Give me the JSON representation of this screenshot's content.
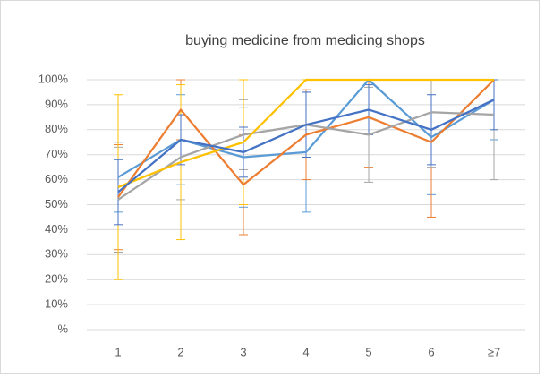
{
  "chart_data": {
    "type": "line",
    "title": "buying medicine from medicing shops",
    "categories": [
      "1",
      "2",
      "3",
      "4",
      "5",
      "6",
      "≥7"
    ],
    "ylim": [
      0,
      100
    ],
    "yticks": [
      {
        "value": 0,
        "label": "%"
      },
      {
        "value": 10,
        "label": "10%"
      },
      {
        "value": 20,
        "label": "20%"
      },
      {
        "value": 30,
        "label": "30%"
      },
      {
        "value": 40,
        "label": "40%"
      },
      {
        "value": 50,
        "label": "50%"
      },
      {
        "value": 60,
        "label": "60%"
      },
      {
        "value": 70,
        "label": "70%"
      },
      {
        "value": 80,
        "label": "80%"
      },
      {
        "value": 90,
        "label": "90%"
      },
      {
        "value": 100,
        "label": "100%"
      }
    ],
    "grid": true,
    "series": [
      {
        "color": "#5b9bd5",
        "values": [
          61,
          76,
          69,
          71,
          100,
          77,
          92
        ],
        "errors": [
          14,
          18,
          20,
          24,
          0,
          23,
          16
        ]
      },
      {
        "color": "#ed7d31",
        "values": [
          53,
          88,
          58,
          78,
          85,
          75,
          100
        ],
        "errors": [
          21,
          12,
          20,
          18,
          20,
          30,
          0
        ]
      },
      {
        "color": "#a5a5a5",
        "values": [
          52,
          69,
          78,
          82,
          78,
          87,
          86
        ],
        "errors": [
          21,
          17,
          14,
          13,
          19,
          22,
          26
        ]
      },
      {
        "color": "#ffc000",
        "values": [
          57,
          67,
          75,
          100,
          100,
          100,
          100
        ],
        "errors": [
          37,
          31,
          25,
          0,
          0,
          0,
          0
        ]
      },
      {
        "color": "#4472c4",
        "values": [
          55,
          76,
          71,
          82,
          88,
          80,
          92
        ],
        "errors": [
          13,
          10,
          10,
          13,
          10,
          14,
          12
        ]
      }
    ]
  }
}
